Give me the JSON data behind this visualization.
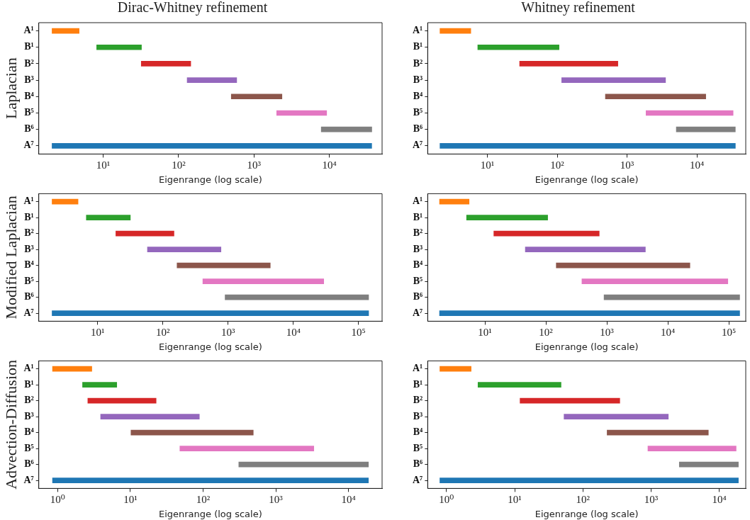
{
  "chart_data": [
    {
      "type": "bar",
      "orientation": "horizontal",
      "log": "x",
      "title": "Dirac-Whitney refinement",
      "ylabel": "Laplacian",
      "xlabel": "Eigenrange (log scale)",
      "categories": [
        "A¹",
        "B¹",
        "B²",
        "B³",
        "B⁴",
        "B⁵",
        "B⁶",
        "A⁷"
      ],
      "base": [
        2.1,
        8.2,
        32,
        130,
        500,
        2000,
        7800,
        2.1
      ],
      "values": [
        2.7,
        24,
        113,
        460,
        1850,
        7200,
        28700,
        36400
      ],
      "colors": [
        "#ff7f0e",
        "#2ca02c",
        "#d62728",
        "#9467bd",
        "#8c564b",
        "#e377c2",
        "#7f7f7f",
        "#1f77b4"
      ],
      "xlim": [
        1.4,
        50000
      ],
      "xticks": [
        {
          "value": 10,
          "label": "10¹"
        },
        {
          "value": 100,
          "label": "10²"
        },
        {
          "value": 1000,
          "label": "10³"
        },
        {
          "value": 10000,
          "label": "10⁴"
        }
      ]
    },
    {
      "type": "bar",
      "orientation": "horizontal",
      "log": "x",
      "title": "Whitney refinement",
      "xlabel": "Eigenrange (log scale)",
      "categories": [
        "A¹",
        "B¹",
        "B²",
        "B³",
        "B⁴",
        "B⁵",
        "B⁶",
        "A⁷"
      ],
      "base": [
        2.1,
        7.3,
        29,
        116,
        490,
        1870,
        5070,
        2.1
      ],
      "values": [
        3.7,
        99,
        710,
        3440,
        12900,
        31100,
        30400,
        35500
      ],
      "colors": [
        "#ff7f0e",
        "#2ca02c",
        "#d62728",
        "#9467bd",
        "#8c564b",
        "#e377c2",
        "#7f7f7f",
        "#1f77b4"
      ],
      "xlim": [
        1.4,
        50000
      ],
      "xticks": [
        {
          "value": 10,
          "label": "10¹"
        },
        {
          "value": 100,
          "label": "10²"
        },
        {
          "value": 1000,
          "label": "10³"
        },
        {
          "value": 10000,
          "label": "10⁴"
        }
      ]
    },
    {
      "type": "bar",
      "orientation": "horizontal",
      "log": "x",
      "ylabel": "Modified Laplacian",
      "xlabel": "Eigenrange (log scale)",
      "categories": [
        "A¹",
        "B¹",
        "B²",
        "B³",
        "B⁴",
        "B⁵",
        "B⁶",
        "A⁷"
      ],
      "base": [
        2.0,
        6.7,
        19,
        58,
        165,
        410,
        900,
        2.0
      ],
      "values": [
        3.0,
        25,
        129,
        720,
        4270,
        28900,
        142000,
        143000
      ],
      "colors": [
        "#ff7f0e",
        "#2ca02c",
        "#d62728",
        "#9467bd",
        "#8c564b",
        "#e377c2",
        "#7f7f7f",
        "#1f77b4"
      ],
      "xlim": [
        1.25,
        230000
      ],
      "xticks": [
        {
          "value": 10,
          "label": "10¹"
        },
        {
          "value": 100,
          "label": "10²"
        },
        {
          "value": 1000,
          "label": "10³"
        },
        {
          "value": 10000,
          "label": "10⁴"
        },
        {
          "value": 100000,
          "label": "10⁵"
        }
      ]
    },
    {
      "type": "bar",
      "orientation": "horizontal",
      "log": "x",
      "xlabel": "Eigenrange (log scale)",
      "categories": [
        "A¹",
        "B¹",
        "B²",
        "B³",
        "B⁴",
        "B⁵",
        "B⁶",
        "A⁷"
      ],
      "base": [
        1.8,
        5.0,
        14,
        46,
        148,
        390,
        900,
        1.8
      ],
      "values": [
        3.7,
        102,
        736,
        4240,
        22900,
        96200,
        150000,
        151000
      ],
      "colors": [
        "#ff7f0e",
        "#2ca02c",
        "#d62728",
        "#9467bd",
        "#8c564b",
        "#e377c2",
        "#7f7f7f",
        "#1f77b4"
      ],
      "xlim": [
        1.15,
        190000
      ],
      "xticks": [
        {
          "value": 10,
          "label": "10¹"
        },
        {
          "value": 100,
          "label": "10²"
        },
        {
          "value": 1000,
          "label": "10³"
        },
        {
          "value": 10000,
          "label": "10⁴"
        },
        {
          "value": 100000,
          "label": "10⁵"
        }
      ]
    },
    {
      "type": "bar",
      "orientation": "horizontal",
      "log": "x",
      "ylabel": "Advection-Diffusion",
      "xlabel": "Eigenrange (log scale)",
      "categories": [
        "A¹",
        "B¹",
        "B²",
        "B³",
        "B⁴",
        "B⁵",
        "B⁶",
        "A⁷"
      ],
      "base": [
        0.85,
        2.2,
        2.6,
        3.9,
        10.2,
        48,
        310,
        0.85
      ],
      "values": [
        2.1,
        4.3,
        20,
        85,
        480,
        3290,
        18500,
        18800
      ],
      "colors": [
        "#ff7f0e",
        "#2ca02c",
        "#d62728",
        "#9467bd",
        "#8c564b",
        "#e377c2",
        "#7f7f7f",
        "#1f77b4"
      ],
      "xlim": [
        0.55,
        29000
      ],
      "xticks": [
        {
          "value": 1,
          "label": "10⁰"
        },
        {
          "value": 10,
          "label": "10¹"
        },
        {
          "value": 100,
          "label": "10²"
        },
        {
          "value": 1000,
          "label": "10³"
        },
        {
          "value": 10000,
          "label": "10⁴"
        }
      ]
    },
    {
      "type": "bar",
      "orientation": "horizontal",
      "log": "x",
      "xlabel": "Eigenrange (log scale)",
      "categories": [
        "A¹",
        "B¹",
        "B²",
        "B³",
        "B⁴",
        "B⁵",
        "B⁶",
        "A⁷"
      ],
      "base": [
        0.8,
        2.9,
        12,
        53,
        227,
        900,
        2600,
        0.8
      ],
      "values": [
        1.5,
        45,
        336,
        1740,
        6700,
        16800,
        16500,
        19100
      ],
      "colors": [
        "#ff7f0e",
        "#2ca02c",
        "#d62728",
        "#9467bd",
        "#8c564b",
        "#e377c2",
        "#7f7f7f",
        "#1f77b4"
      ],
      "xlim": [
        0.53,
        24500
      ],
      "xticks": [
        {
          "value": 1,
          "label": "10⁰"
        },
        {
          "value": 10,
          "label": "10¹"
        },
        {
          "value": 100,
          "label": "10²"
        },
        {
          "value": 1000,
          "label": "10³"
        },
        {
          "value": 10000,
          "label": "10⁴"
        }
      ]
    }
  ]
}
